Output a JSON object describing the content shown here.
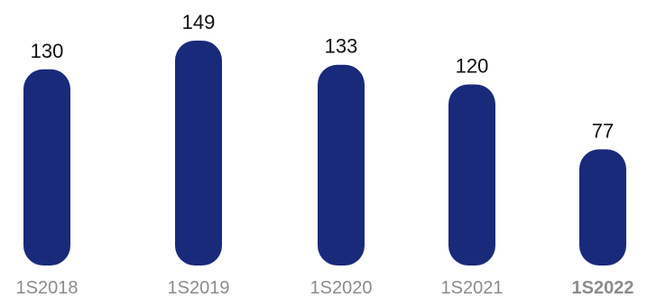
{
  "chart_data": {
    "type": "bar",
    "categories": [
      "1S2018",
      "1S2019",
      "1S2020",
      "1S2021",
      "1S2022"
    ],
    "values": [
      130,
      149,
      133,
      120,
      77
    ],
    "value_labels": [
      "130",
      "149",
      "133",
      "120",
      "77"
    ],
    "highlight_category": "1S2022",
    "title": "",
    "xlabel": "",
    "ylabel": "",
    "grid": false,
    "legend": "none",
    "colors": {
      "bar": "#1a2a7a",
      "value_label": "#111111",
      "category_label": "#8c8c8c",
      "highlight_label": "#1a2a7a"
    }
  }
}
